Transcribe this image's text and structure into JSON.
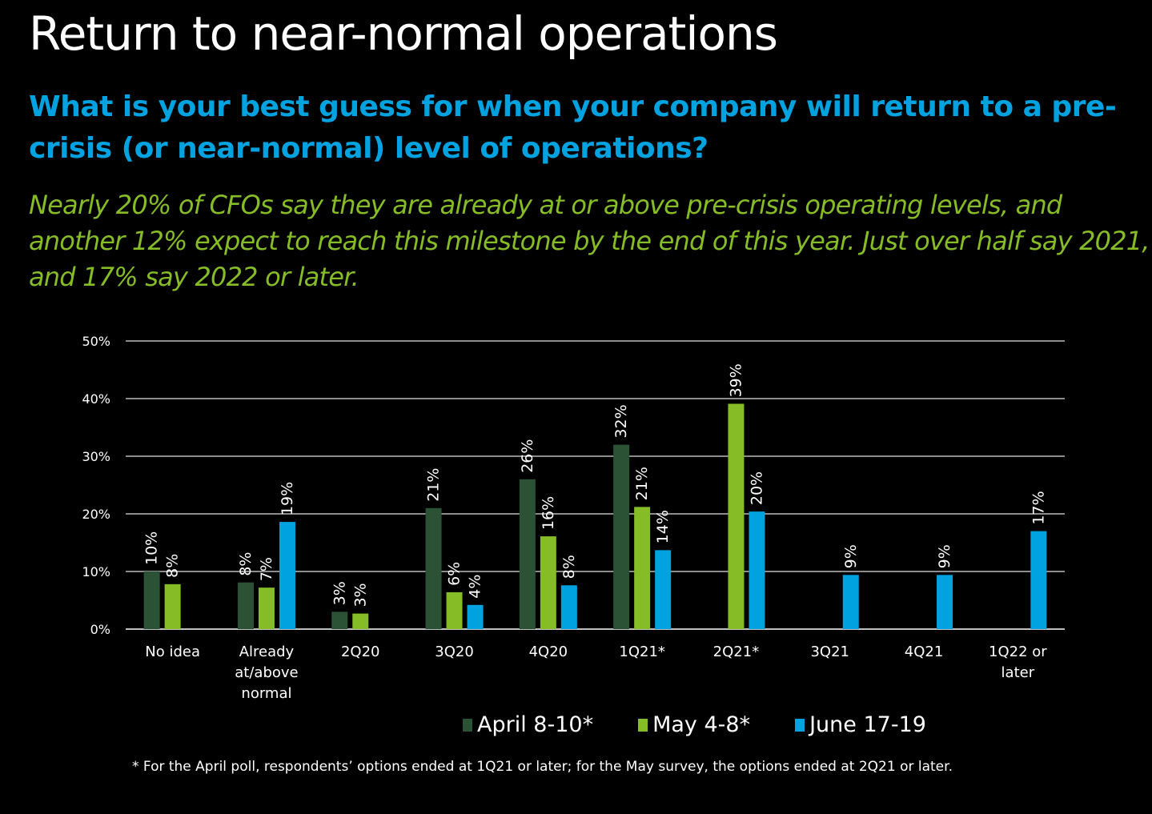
{
  "header": {
    "title": "Return to near-normal operations",
    "question": "What is your best guess for when your company will return to a pre-crisis (or near-normal) level of operations?",
    "summary": "Nearly 20% of CFOs say they are already at or above pre-crisis operating levels, and another 12% expect to reach this milestone by the end of this year. Just over half say 2021, and 17% say 2022 or later."
  },
  "footnote": "*  For the April poll, respondents’ options ended at 1Q21 or later; for the May survey, the options ended at 2Q21 or later.",
  "chart_data": {
    "type": "bar",
    "title": "",
    "xlabel": "",
    "ylabel": "",
    "ylim": [
      0,
      50
    ],
    "yticks": [
      "0%",
      "10%",
      "20%",
      "30%",
      "40%",
      "50%"
    ],
    "grid": true,
    "legend_position": "bottom",
    "categories": [
      [
        "No idea"
      ],
      [
        "Already",
        "at/above",
        "normal"
      ],
      [
        "2Q20"
      ],
      [
        "3Q20"
      ],
      [
        "4Q20"
      ],
      [
        "1Q21*"
      ],
      [
        "2Q21*"
      ],
      [
        "3Q21"
      ],
      [
        "4Q21"
      ],
      [
        "1Q22 or",
        "later"
      ]
    ],
    "series": [
      {
        "name": "April 8-10*",
        "color": "#2b5234",
        "values": [
          10,
          8,
          3,
          21,
          26,
          32,
          null,
          null,
          null,
          null
        ]
      },
      {
        "name": "May 4-8*",
        "color": "#86bc25",
        "values": [
          8,
          7,
          3,
          6,
          16,
          21,
          39,
          null,
          null,
          null
        ]
      },
      {
        "name": "June 17-19",
        "color": "#00a3e0",
        "values": [
          null,
          19,
          null,
          4,
          8,
          14,
          20,
          9,
          9,
          17
        ]
      }
    ],
    "bar_heights_exact": [
      [
        10,
        8.1,
        3,
        21,
        26,
        32,
        null,
        null,
        null,
        null
      ],
      [
        7.8,
        7.2,
        2.7,
        6.4,
        16.1,
        21.2,
        39.1,
        null,
        null,
        null
      ],
      [
        null,
        18.6,
        null,
        4.2,
        7.6,
        13.7,
        20.4,
        9.4,
        9.4,
        17
      ]
    ]
  }
}
